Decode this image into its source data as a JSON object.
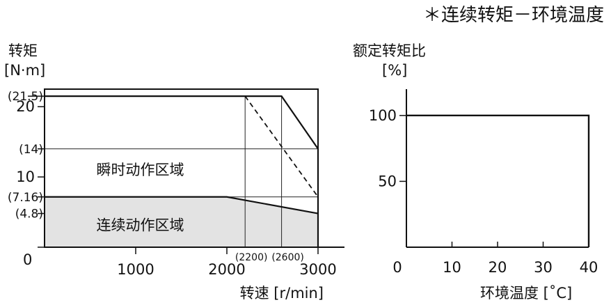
{
  "header": {
    "title": "＊连续转矩－环境温度"
  },
  "chart_data": [
    {
      "type": "area",
      "ylabel": [
        "转矩",
        "[N·m]"
      ],
      "xlabel": "转速 [r/min]",
      "xlim": [
        0,
        3000
      ],
      "ylim": [
        0,
        22.5
      ],
      "x_ticks": [
        {
          "value": 1000,
          "label": "1000"
        },
        {
          "value": 2000,
          "label": "2000"
        },
        {
          "value": 3000,
          "label": "3000"
        }
      ],
      "x_minor_labels": [
        {
          "value": 2200,
          "label": "(2200)"
        },
        {
          "value": 2600,
          "label": "(2600)"
        }
      ],
      "y_ticks": [
        {
          "value": 0,
          "label": "0"
        },
        {
          "value": 10,
          "label": "10"
        },
        {
          "value": 20,
          "label": "20"
        }
      ],
      "y_ref_labels": [
        {
          "value": 21.5,
          "label": "(21.5)"
        },
        {
          "value": 14,
          "label": "(14)"
        },
        {
          "value": 7.16,
          "label": "(7.16)"
        },
        {
          "value": 4.8,
          "label": "(4.8)"
        }
      ],
      "series": [
        {
          "name": "瞬时动作区域",
          "x": [
            0,
            2600,
            3000,
            3000
          ],
          "y": [
            21.5,
            21.5,
            14,
            0
          ]
        },
        {
          "name": "连续动作区域",
          "x": [
            0,
            2000,
            3000
          ],
          "y": [
            7.16,
            7.16,
            4.8
          ]
        },
        {
          "x": [
            2200,
            3000
          ],
          "y": [
            21.5,
            7.16
          ]
        }
      ],
      "gridlines": {
        "x": [
          2200,
          2600
        ],
        "y": [
          14,
          7.16
        ]
      },
      "fill_color": "#e3e3e3"
    },
    {
      "type": "line",
      "ylabel": [
        "额定转矩比",
        "[%]"
      ],
      "xlabel": "环境温度 [˚C]",
      "xlim": [
        0,
        40
      ],
      "ylim": [
        0,
        120
      ],
      "x_ticks": [
        {
          "value": 0,
          "label": "0"
        },
        {
          "value": 10,
          "label": "10"
        },
        {
          "value": 20,
          "label": "20"
        },
        {
          "value": 30,
          "label": "30"
        },
        {
          "value": 40,
          "label": "40"
        }
      ],
      "y_ticks": [
        {
          "value": 50,
          "label": "50"
        },
        {
          "value": 100,
          "label": "100"
        }
      ],
      "series": [
        {
          "x": [
            0,
            40,
            40
          ],
          "y": [
            100,
            100,
            0
          ]
        }
      ]
    }
  ]
}
